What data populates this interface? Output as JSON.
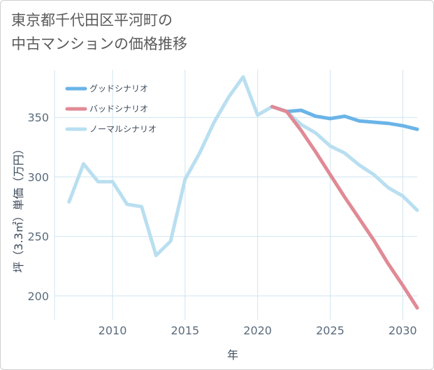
{
  "chart_data": {
    "type": "line",
    "title": "東京都千代田区平河町の\n中古マンションの価格推移",
    "xlabel": "年",
    "ylabel": "坪（3.3㎡）単価（万円）",
    "xlim": [
      2006,
      2031
    ],
    "ylim": [
      180,
      390
    ],
    "xticks": [
      2010,
      2015,
      2020,
      2025,
      2030
    ],
    "yticks": [
      200,
      250,
      300,
      350
    ],
    "legend_position": "top-left",
    "series": [
      {
        "name": "グッドシナリオ",
        "color": "#6ab4e8",
        "x": [
          2021,
          2022,
          2023,
          2024,
          2025,
          2026,
          2027,
          2028,
          2029,
          2030,
          2031
        ],
        "y": [
          359,
          355,
          356,
          351,
          349,
          351,
          347,
          346,
          345,
          343,
          340
        ]
      },
      {
        "name": "バッドシナリオ",
        "color": "#e08a95",
        "x": [
          2021,
          2022,
          2023,
          2024,
          2025,
          2026,
          2027,
          2028,
          2029,
          2030,
          2031
        ],
        "y": [
          359,
          355,
          339,
          321,
          302,
          283,
          265,
          247,
          227,
          209,
          190
        ]
      },
      {
        "name": "ノーマルシナリオ",
        "color": "#b9dff0",
        "x": [
          2007,
          2008,
          2009,
          2010,
          2011,
          2012,
          2013,
          2014,
          2015,
          2016,
          2017,
          2018,
          2019,
          2020,
          2021,
          2022,
          2023,
          2024,
          2025,
          2026,
          2027,
          2028,
          2029,
          2030,
          2031
        ],
        "y": [
          279,
          311,
          296,
          296,
          277,
          275,
          234,
          246,
          298,
          320,
          346,
          367,
          384,
          352,
          359,
          355,
          344,
          337,
          326,
          320,
          310,
          302,
          291,
          284,
          272
        ]
      }
    ]
  }
}
